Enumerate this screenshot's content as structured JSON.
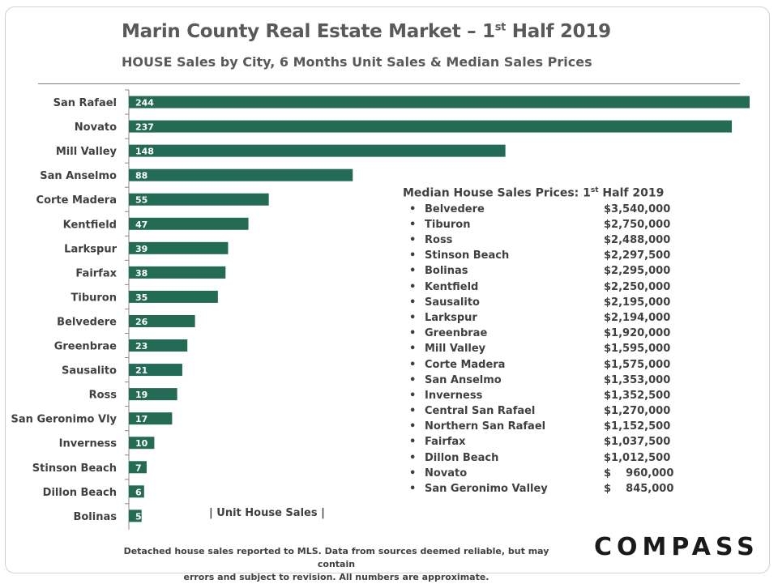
{
  "header": {
    "title_main": "Marin County Real Estate Market – 1",
    "title_sup": "st",
    "title_tail": " Half 2019",
    "subtitle": "HOUSE Sales by City, 6 Months Unit Sales & Median Sales Prices"
  },
  "colors": {
    "bar": "#246b56",
    "bar_label": "#ffffff",
    "axis": "#888888",
    "text": "#404040"
  },
  "chart_data": {
    "type": "bar",
    "orientation": "horizontal",
    "title": "HOUSE Sales by City, 6 Months Unit Sales",
    "xlabel": "| Unit House Sales |",
    "ylabel": "",
    "xlim": [
      0,
      244
    ],
    "categories": [
      "San Rafael",
      "Novato",
      "Mill Valley",
      "San Anselmo",
      "Corte Madera",
      "Kentfield",
      "Larkspur",
      "Fairfax",
      "Tiburon",
      "Belvedere",
      "Greenbrae",
      "Sausalito",
      "Ross",
      "San Geronimo Vly",
      "Inverness",
      "Stinson Beach",
      "Dillon Beach",
      "Bolinas"
    ],
    "values": [
      244,
      237,
      148,
      88,
      55,
      47,
      39,
      38,
      35,
      26,
      23,
      21,
      19,
      17,
      10,
      7,
      6,
      5
    ]
  },
  "median": {
    "title_main": "Median House Sales Prices: 1",
    "title_sup": "st",
    "title_tail": " Half 2019",
    "bullet": "•",
    "rows": [
      {
        "city": "Belvedere",
        "price": "$3,540,000"
      },
      {
        "city": "Tiburon",
        "price": "$2,750,000"
      },
      {
        "city": "Ross",
        "price": "$2,488,000"
      },
      {
        "city": "Stinson Beach",
        "price": "$2,297,500"
      },
      {
        "city": "Bolinas",
        "price": "$2,295,000"
      },
      {
        "city": "Kentfield",
        "price": "$2,250,000"
      },
      {
        "city": "Sausalito",
        "price": "$2,195,000"
      },
      {
        "city": "Larkspur",
        "price": "$2,194,000"
      },
      {
        "city": "Greenbrae",
        "price": "$1,920,000"
      },
      {
        "city": "Mill Valley",
        "price": "$1,595,000"
      },
      {
        "city": "Corte Madera",
        "price": "$1,575,000"
      },
      {
        "city": "San Anselmo",
        "price": "$1,353,000"
      },
      {
        "city": "Inverness",
        "price": "$1,352,500"
      },
      {
        "city": "Central San Rafael",
        "price": "$1,270,000"
      },
      {
        "city": "Northern San Rafael",
        "price": "$1,152,500"
      },
      {
        "city": "Fairfax",
        "price": "$1,037,500"
      },
      {
        "city": "Dillon Beach",
        "price": "$1,012,500"
      },
      {
        "city": "Novato",
        "price": "$    960,000"
      },
      {
        "city": "San Geronimo Valley",
        "price": "$    845,000"
      }
    ]
  },
  "footnote": {
    "line1": "Detached house sales reported to MLS. Data from sources deemed reliable, but may contain",
    "line2": "errors and subject to revision. All numbers are approximate."
  },
  "brand": {
    "logo": "COMPASS"
  }
}
